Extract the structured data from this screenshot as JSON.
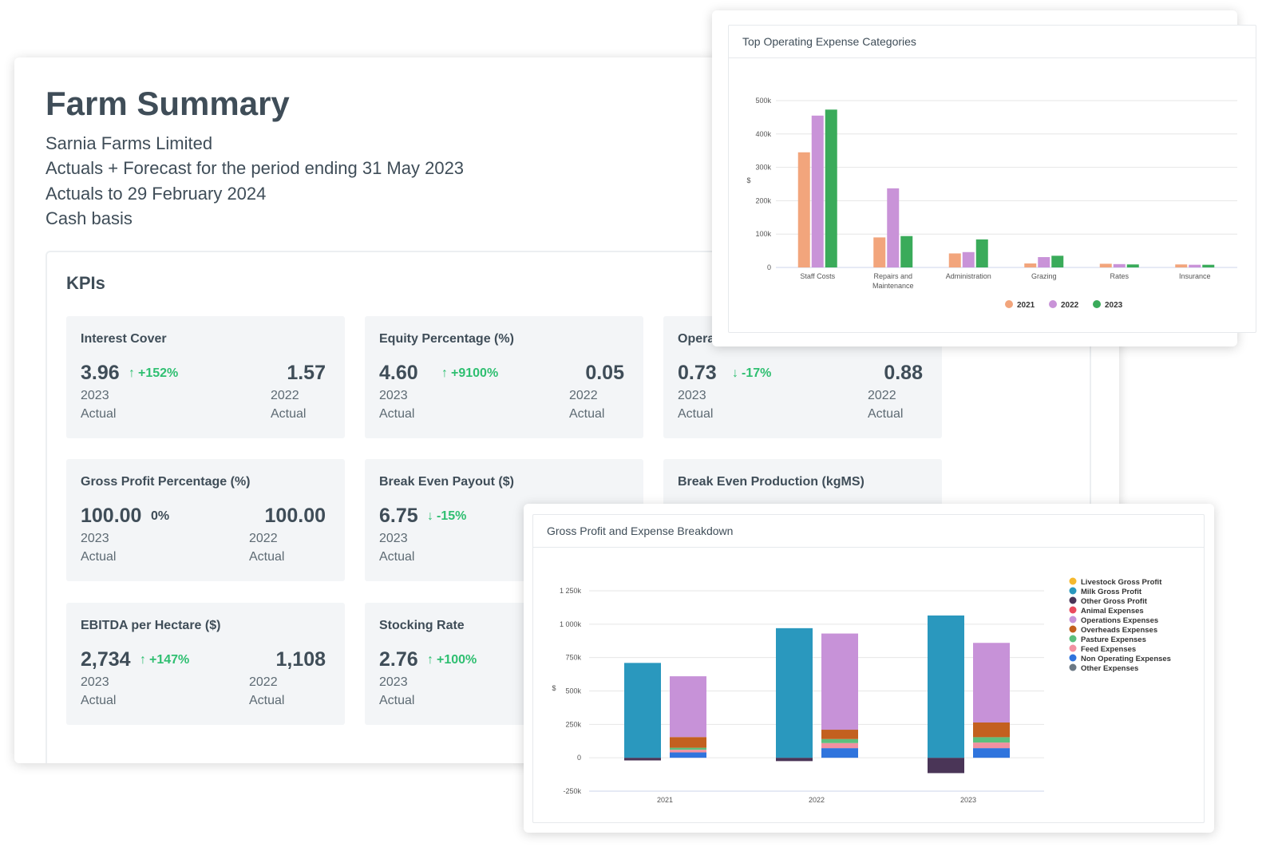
{
  "summary": {
    "title": "Farm Summary",
    "company": "Sarnia Farms Limited",
    "period_line": "Actuals + Forecast for the period ending 31 May 2023",
    "actuals_line": "Actuals to 29 February 2024",
    "basis": "Cash basis"
  },
  "kpis": {
    "heading": "KPIs",
    "tiles": [
      {
        "title": "Interest Cover",
        "value": "3.96",
        "arrow": "↑",
        "change": "+152%",
        "year": "2023",
        "kind": "Actual",
        "prev_value": "1.57",
        "prev_year": "2022",
        "prev_kind": "Actual"
      },
      {
        "title": "Equity Percentage (%)",
        "value": "4.60",
        "arrow": "↑",
        "change": "+9100%",
        "year": "2023",
        "kind": "Actual",
        "prev_value": "0.05",
        "prev_year": "2022",
        "prev_kind": "Actual"
      },
      {
        "title": "Opera",
        "value": "0.73",
        "arrow": "↓",
        "change": "-17%",
        "year": "2023",
        "kind": "Actual",
        "prev_value": "0.88",
        "prev_year": "2022",
        "prev_kind": "Actual"
      },
      {
        "title": "Gross Profit Percentage (%)",
        "value": "100.00",
        "arrow": "",
        "change": "0%",
        "year": "2023",
        "kind": "Actual",
        "prev_value": "100.00",
        "prev_year": "2022",
        "prev_kind": "Actual"
      },
      {
        "title": "Break Even Payout ($)",
        "value": "6.75",
        "arrow": "↓",
        "change": "-15%",
        "year": "2023",
        "kind": "Actual",
        "prev_value": "",
        "prev_year": "",
        "prev_kind": ""
      },
      {
        "title": "Break Even Production (kgMS)",
        "value": "",
        "arrow": "",
        "change": "",
        "year": "",
        "kind": "",
        "prev_value": "",
        "prev_year": "",
        "prev_kind": ""
      },
      {
        "title": "EBITDA per Hectare ($)",
        "value": "2,734",
        "arrow": "↑",
        "change": "+147%",
        "year": "2023",
        "kind": "Actual",
        "prev_value": "1,108",
        "prev_year": "2022",
        "prev_kind": "Actual"
      },
      {
        "title": "Stocking Rate",
        "value": "2.76",
        "arrow": "↑",
        "change": "+100%",
        "year": "2023",
        "kind": "Actual",
        "prev_value": "",
        "prev_year": "",
        "prev_kind": ""
      }
    ]
  },
  "expense_chart": {
    "title": "Top Operating Expense Categories",
    "chart_data": {
      "type": "bar",
      "title": "Top Operating Expense Categories",
      "ylabel": "$",
      "ylim": [
        0,
        500000
      ],
      "yticks": [
        0,
        100000,
        200000,
        300000,
        400000,
        500000
      ],
      "ytick_labels": [
        "0",
        "100k",
        "200k",
        "300k",
        "400k",
        "500k"
      ],
      "categories": [
        "Staff Costs",
        "Repairs and Maintenance",
        "Administration",
        "Grazing",
        "Rates",
        "Insurance"
      ],
      "category_lines": [
        [
          "Staff Costs"
        ],
        [
          "Repairs and",
          "Maintenance"
        ],
        [
          "Administration"
        ],
        [
          "Grazing"
        ],
        [
          "Rates"
        ],
        [
          "Insurance"
        ]
      ],
      "legend_position": "bottom",
      "series": [
        {
          "name": "2021",
          "color": "#f2a57c",
          "values": [
            345000,
            90000,
            42000,
            12000,
            11000,
            9000
          ]
        },
        {
          "name": "2022",
          "color": "#c993d8",
          "values": [
            455000,
            237000,
            46000,
            31000,
            10000,
            8000
          ]
        },
        {
          "name": "2023",
          "color": "#3aab5a",
          "values": [
            473000,
            94000,
            84000,
            35000,
            9000,
            8000
          ]
        }
      ]
    }
  },
  "breakdown_chart": {
    "title": "Gross Profit and Expense Breakdown",
    "chart_data": {
      "type": "bar",
      "stacked": true,
      "title": "Gross Profit and Expense Breakdown",
      "ylabel": "$",
      "ylim": [
        -250000,
        1250000
      ],
      "yticks": [
        -250000,
        0,
        250000,
        500000,
        750000,
        1000000,
        1250000
      ],
      "ytick_labels": [
        "-250k",
        "0",
        "250k",
        "500k",
        "750k",
        "1 000k",
        "1 250k"
      ],
      "categories": [
        "2021",
        "2022",
        "2023"
      ],
      "legend_position": "right",
      "legend": [
        {
          "name": "Livestock Gross Profit",
          "color": "#f5b82e"
        },
        {
          "name": "Milk Gross Profit",
          "color": "#2a98be"
        },
        {
          "name": "Other Gross Profit",
          "color": "#4a3557"
        },
        {
          "name": "Animal Expenses",
          "color": "#ea4b5e"
        },
        {
          "name": "Operations Expenses",
          "color": "#c792d8"
        },
        {
          "name": "Overheads Expenses",
          "color": "#c3601f"
        },
        {
          "name": "Pasture Expenses",
          "color": "#5cbf7d"
        },
        {
          "name": "Feed Expenses",
          "color": "#f291a1"
        },
        {
          "name": "Non Operating Expenses",
          "color": "#2f74dd"
        },
        {
          "name": "Other Expenses",
          "color": "#6b7884"
        }
      ],
      "gross_profit_stacks": [
        {
          "category": "2021",
          "segments": [
            {
              "name": "Other Gross Profit",
              "value": -20000
            },
            {
              "name": "Milk Gross Profit",
              "value": 710000
            }
          ]
        },
        {
          "category": "2022",
          "segments": [
            {
              "name": "Other Gross Profit",
              "value": -25000
            },
            {
              "name": "Milk Gross Profit",
              "value": 970000
            }
          ]
        },
        {
          "category": "2023",
          "segments": [
            {
              "name": "Other Gross Profit",
              "value": -115000
            },
            {
              "name": "Milk Gross Profit",
              "value": 1065000
            }
          ]
        }
      ],
      "expense_stacks": [
        {
          "category": "2021",
          "segments": [
            {
              "name": "Non Operating Expenses",
              "value": 40000
            },
            {
              "name": "Feed Expenses",
              "value": 20000
            },
            {
              "name": "Pasture Expenses",
              "value": 15000
            },
            {
              "name": "Overheads Expenses",
              "value": 80000
            },
            {
              "name": "Operations Expenses",
              "value": 455000
            }
          ]
        },
        {
          "category": "2022",
          "segments": [
            {
              "name": "Non Operating Expenses",
              "value": 72000
            },
            {
              "name": "Feed Expenses",
              "value": 38000
            },
            {
              "name": "Pasture Expenses",
              "value": 30000
            },
            {
              "name": "Overheads Expenses",
              "value": 70000
            },
            {
              "name": "Operations Expenses",
              "value": 720000
            }
          ]
        },
        {
          "category": "2023",
          "segments": [
            {
              "name": "Non Operating Expenses",
              "value": 72000
            },
            {
              "name": "Feed Expenses",
              "value": 42000
            },
            {
              "name": "Pasture Expenses",
              "value": 40000
            },
            {
              "name": "Overheads Expenses",
              "value": 110000
            },
            {
              "name": "Operations Expenses",
              "value": 596000
            }
          ]
        }
      ]
    }
  }
}
